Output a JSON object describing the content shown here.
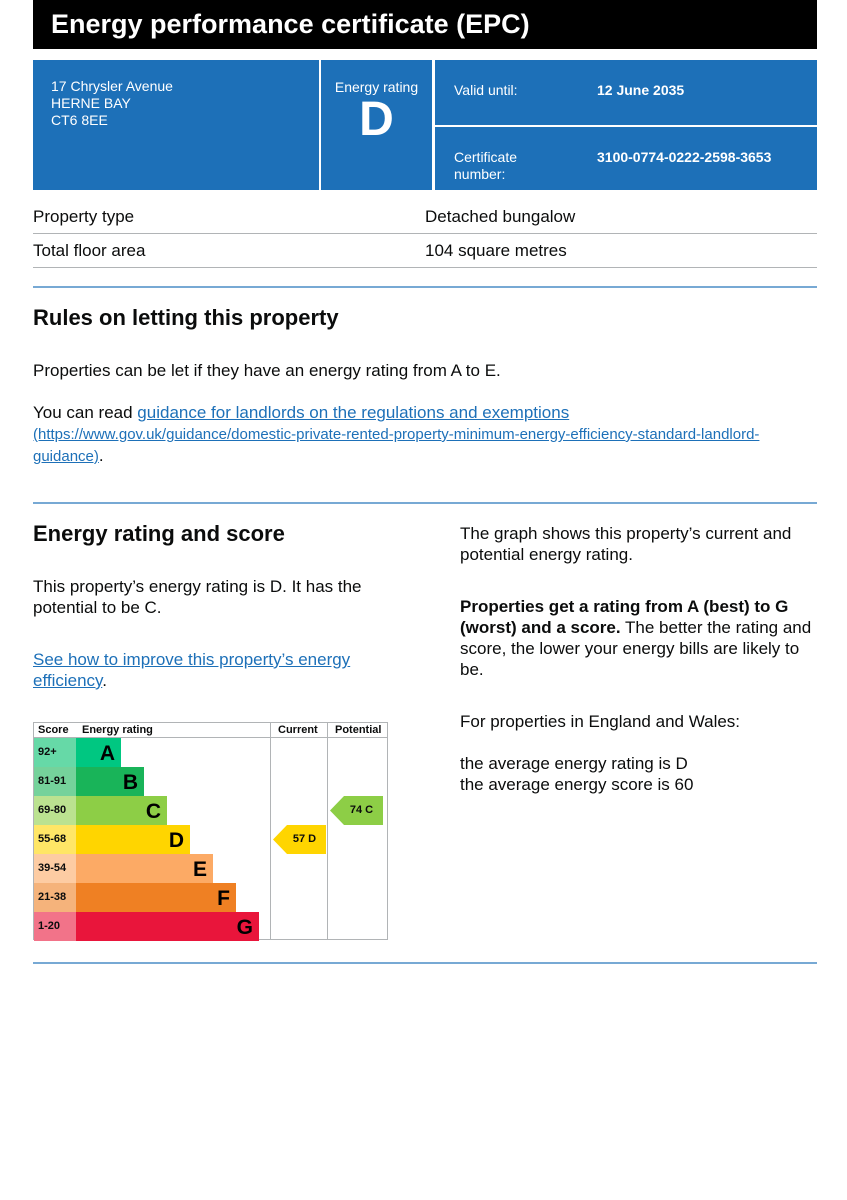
{
  "title": "Energy performance certificate (EPC)",
  "address": {
    "line1": "17 Chrysler Avenue",
    "line2": "HERNE BAY",
    "line3": "CT6 8EE"
  },
  "rating_box": {
    "label": "Energy rating",
    "value": "D"
  },
  "valid_until": {
    "label": "Valid until:",
    "value": "12 June 2035"
  },
  "certificate": {
    "label": "Certificate number:",
    "value": "3100-0774-0222-2598-3653"
  },
  "property": [
    {
      "label": "Property type",
      "value": "Detached bungalow"
    },
    {
      "label": "Total floor area",
      "value": "104 square metres"
    }
  ],
  "rules": {
    "heading": "Rules on letting this property",
    "p1": "Properties can be let if they have an energy rating from A to E.",
    "p2_prefix": "You can read ",
    "p2_link": "guidance for landlords on the regulations and exemptions",
    "p2_url": "(https://www.gov.uk/guidance/domestic-private-rented-property-minimum-energy-efficiency-standard-landlord-guidance)",
    "p2_suffix": "."
  },
  "energy": {
    "heading": "Energy rating and score",
    "p1": "This property’s energy rating is D. It has the potential to be C.",
    "link": "See how to improve this property’s energy efficiency",
    "link_suffix": ".",
    "right_p1": "The graph shows this property’s current and potential energy rating.",
    "right_bold": "Properties get a rating from A (best) to G (worst) and a score.",
    "right_rest": " The better the rating and score, the lower your energy bills are likely to be.",
    "right_p3": "For properties in England and Wales:",
    "right_p4a": "the average energy rating is D",
    "right_p4b": "the average energy score is 60"
  },
  "graph": {
    "headers": {
      "score": "Score",
      "rating": "Energy rating",
      "current": "Current",
      "potential": "Potential"
    },
    "bands": [
      {
        "letter": "A",
        "range": "92+",
        "color": "#00c781",
        "score_bg": "#66d9a7"
      },
      {
        "letter": "B",
        "range": "81-91",
        "color": "#19b459",
        "score_bg": "#75d29b"
      },
      {
        "letter": "C",
        "range": "69-80",
        "color": "#8dce46",
        "score_bg": "#bbe290"
      },
      {
        "letter": "D",
        "range": "55-68",
        "color": "#ffd500",
        "score_bg": "#ffe666"
      },
      {
        "letter": "E",
        "range": "39-54",
        "color": "#fcaa65",
        "score_bg": "#fdcca3"
      },
      {
        "letter": "F",
        "range": "21-38",
        "color": "#ef8023",
        "score_bg": "#f5b37b"
      },
      {
        "letter": "G",
        "range": "1-20",
        "color": "#e9153b",
        "score_bg": "#f27389"
      }
    ],
    "current": {
      "score": 57,
      "letter": "D",
      "label": "57  D"
    },
    "potential": {
      "score": 74,
      "letter": "C",
      "label": "74  C"
    }
  }
}
